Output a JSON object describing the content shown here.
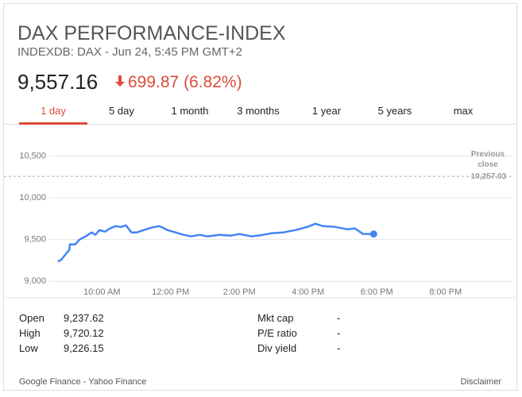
{
  "header": {
    "title": "DAX PERFORMANCE-INDEX",
    "subtitle": "INDEXDB: DAX - Jun 24, 5:45 PM GMT+2",
    "price": "9,557.16",
    "change": "699.87 (6.82%)"
  },
  "tabs": [
    "1 day",
    "5 day",
    "1 month",
    "3 months",
    "1 year",
    "5 years",
    "max"
  ],
  "stats_left": [
    {
      "label": "Open",
      "value": "9,237.62"
    },
    {
      "label": "High",
      "value": "9,720.12"
    },
    {
      "label": "Low",
      "value": "9,226.15"
    }
  ],
  "stats_right": [
    {
      "label": "Mkt cap",
      "value": "-"
    },
    {
      "label": "P/E ratio",
      "value": "-"
    },
    {
      "label": "Div yield",
      "value": "-"
    }
  ],
  "footer": {
    "source": "Google Finance - Yahoo Finance",
    "disclaimer": "Disclaimer"
  },
  "chart_data": {
    "type": "line",
    "color": "#4285f4",
    "x": [
      8.72,
      8.81,
      9.05,
      9.07,
      9.23,
      9.35,
      9.53,
      9.7,
      9.81,
      9.93,
      10.09,
      10.23,
      10.4,
      10.56,
      10.7,
      10.86,
      11.02,
      11.21,
      11.44,
      11.67,
      11.91,
      12.14,
      12.37,
      12.6,
      12.84,
      13.07,
      13.42,
      13.77,
      14.0,
      14.35,
      14.7,
      14.93,
      15.28,
      15.63,
      15.98,
      16.21,
      16.44,
      16.79,
      17.14,
      17.37,
      17.6,
      17.91
    ],
    "values": [
      9236,
      9255,
      9377,
      9443,
      9443,
      9500,
      9538,
      9585,
      9557,
      9613,
      9594,
      9632,
      9660,
      9651,
      9670,
      9585,
      9585,
      9613,
      9642,
      9660,
      9613,
      9585,
      9557,
      9538,
      9557,
      9538,
      9557,
      9547,
      9566,
      9538,
      9557,
      9575,
      9585,
      9613,
      9651,
      9689,
      9660,
      9651,
      9623,
      9632,
      9566,
      9566
    ],
    "xlim": [
      7.15,
      21.95
    ],
    "ylim": [
      8850,
      10800
    ],
    "xticks": [
      {
        "value": 10,
        "label": "10:00 AM"
      },
      {
        "value": 12,
        "label": "12:00 PM"
      },
      {
        "value": 14,
        "label": "2:00 PM"
      },
      {
        "value": 16,
        "label": "4:00 PM"
      },
      {
        "value": 18,
        "label": "6:00 PM"
      },
      {
        "value": 20,
        "label": "8:00 PM"
      }
    ],
    "yticks": [
      {
        "value": 9000,
        "label": "9,000"
      },
      {
        "value": 9500,
        "label": "9,500"
      },
      {
        "value": 10000,
        "label": "10,000"
      },
      {
        "value": 10500,
        "label": "10,500"
      }
    ],
    "grid": true,
    "previous_close": {
      "text": "Previous close",
      "value": 10257.03,
      "label": "10,257.03"
    }
  }
}
